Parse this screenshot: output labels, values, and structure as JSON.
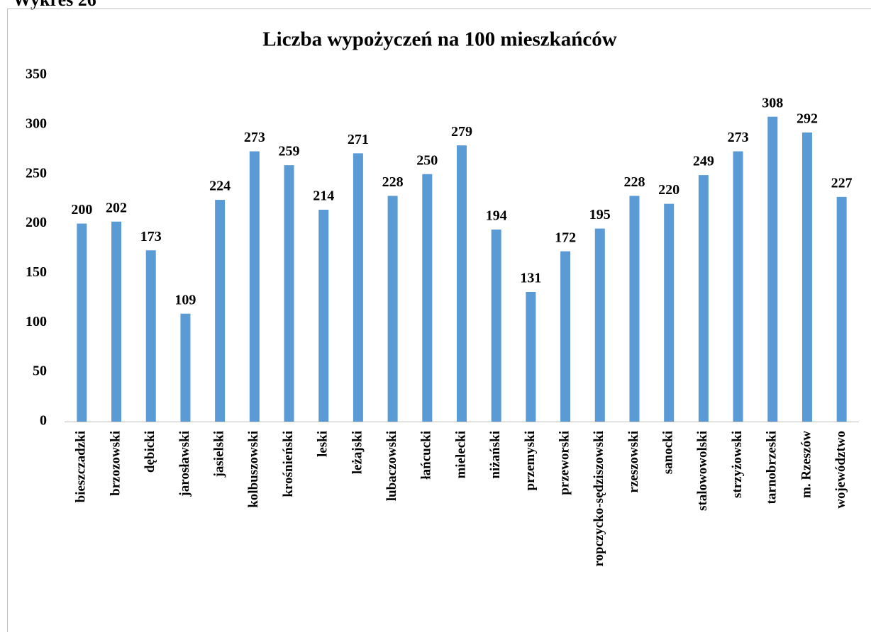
{
  "caption": "Wykres 26",
  "chart_data": {
    "type": "bar",
    "title": "Liczba wypożyczeń  na 100 mieszkańców",
    "categories": [
      "bieszczadzki",
      "brzozowski",
      "dębicki",
      "jarosławski",
      "jasielski",
      "kolbuszowski",
      "krośnieński",
      "leski",
      "leżajski",
      "lubaczowski",
      "łańcucki",
      "mielecki",
      "niżański",
      "przemyski",
      "przeworski",
      "ropczycko-sędziszowski",
      "rzeszowski",
      "sanocki",
      "stalowowolski",
      "strzyżowski",
      "tarnobrzeski",
      "m. Rzeszów",
      "województwo"
    ],
    "values": [
      200,
      202,
      173,
      109,
      224,
      273,
      259,
      214,
      271,
      228,
      250,
      279,
      194,
      131,
      172,
      195,
      228,
      220,
      249,
      273,
      308,
      292,
      227
    ],
    "color": "#5b9bd5",
    "ylim": [
      0,
      350
    ],
    "yticks": [
      0,
      50,
      100,
      150,
      200,
      250,
      300,
      350
    ],
    "grid": false
  }
}
